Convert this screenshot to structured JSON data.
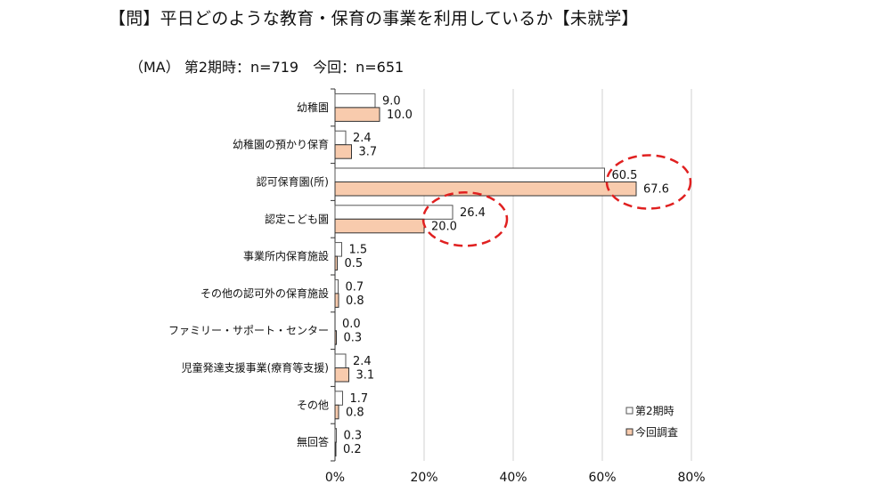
{
  "title": "【問】平日どのような教育・保育の事業を利用しているか【未就学】",
  "subtitle": "（MA） 第2期時：n=719　今回：n=651",
  "chart_data": {
    "type": "bar",
    "orientation": "horizontal",
    "categories": [
      "幼稚園",
      "幼稚園の預かり保育",
      "認可保育園(所)",
      "認定こども園",
      "事業所内保育施設",
      "その他の認可外の保育施設",
      "ファミリー・サポート・センター",
      "児童発達支援事業(療育等支援)",
      "その他",
      "無回答"
    ],
    "series": [
      {
        "name": "第2期時",
        "color": "#ffffff",
        "stroke": "#555555",
        "values": [
          9.0,
          2.4,
          60.5,
          26.4,
          1.5,
          0.7,
          0.0,
          2.4,
          1.7,
          0.3
        ],
        "labels": [
          "9.0",
          "2.4",
          "60.5",
          "26.4",
          "1.5",
          "0.7",
          "0.0",
          "2.4",
          "1.7",
          "0.3"
        ]
      },
      {
        "name": "今回調査",
        "color": "#f8cbad",
        "stroke": "#333333",
        "values": [
          10.0,
          3.7,
          67.6,
          20.0,
          0.5,
          0.8,
          0.3,
          3.1,
          0.8,
          0.2
        ],
        "labels": [
          "10.0",
          "3.7",
          "67.6",
          "20.0",
          "0.5",
          "0.8",
          "0.3",
          "3.1",
          "0.8",
          "0.2"
        ]
      }
    ],
    "xlim": [
      0,
      80
    ],
    "x_ticks": [
      "0%",
      "20%",
      "40%",
      "60%",
      "80%"
    ],
    "grid": "vertical",
    "legend": "bottom-right",
    "highlight_color": "#e02020",
    "highlights": [
      "認可保育園(所)",
      "認定こども園"
    ]
  }
}
